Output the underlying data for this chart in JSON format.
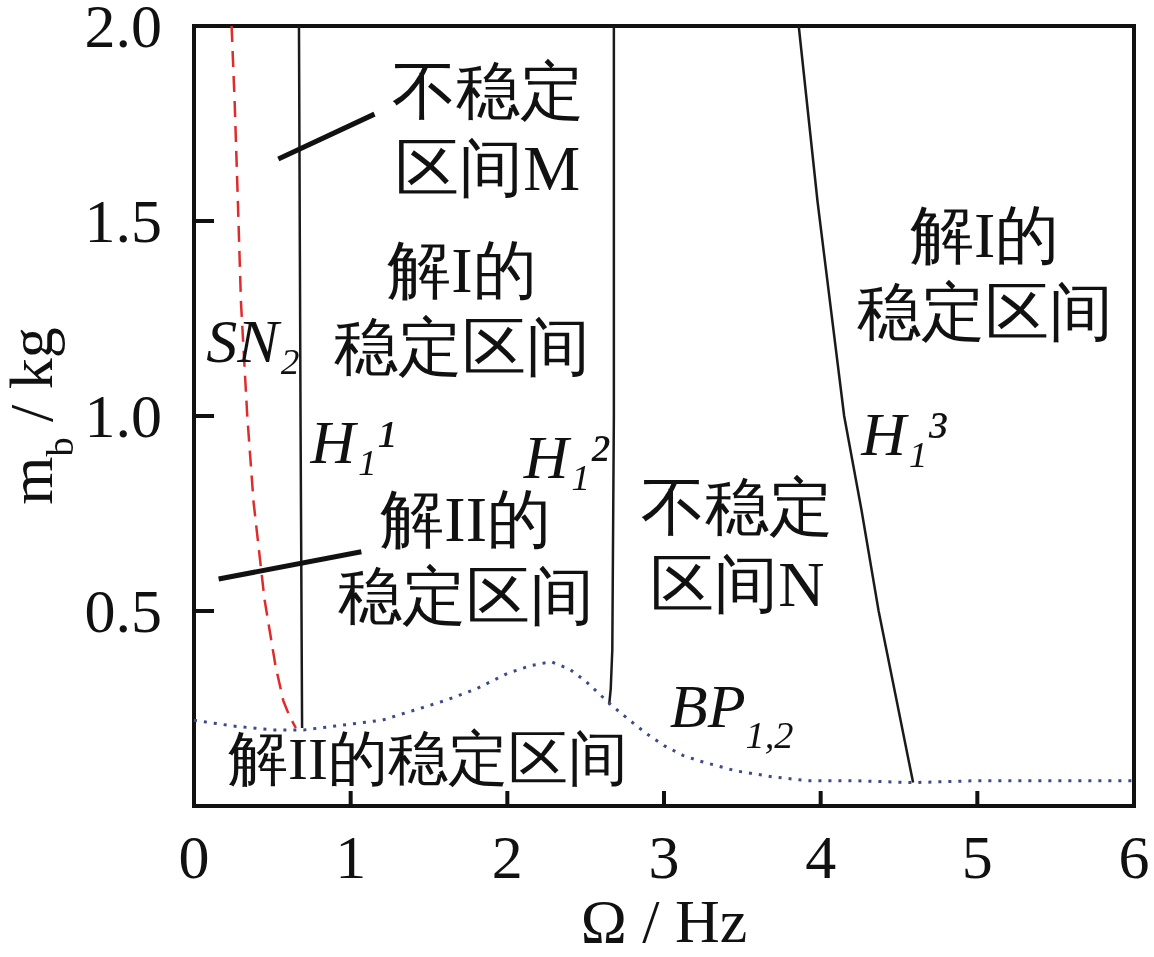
{
  "chart_data": {
    "type": "line",
    "xlabel": "Ω / Hz",
    "ylabel": "m$_{b}$ / kg",
    "xlim": [
      0,
      6
    ],
    "ylim": [
      0,
      2
    ],
    "xticks": [
      0,
      1,
      2,
      3,
      4,
      5,
      6
    ],
    "yticks": [
      0.5,
      {
        "value": 1,
        "label": "1.0"
      },
      1.5,
      {
        "value": 2,
        "label": "2.0"
      }
    ],
    "series": [
      {
        "name": "SN₂",
        "color": "#e02b2b",
        "line_style": "dashed",
        "x": [
          0.24,
          0.26,
          0.28,
          0.3,
          0.34,
          0.38,
          0.45,
          0.52,
          0.57,
          0.61,
          0.65
        ],
        "values": [
          2.0,
          1.8,
          1.55,
          1.29,
          1.0,
          0.78,
          0.53,
          0.36,
          0.27,
          0.23,
          0.2
        ]
      },
      {
        "name": "H₁¹",
        "color": "#1a1a1a",
        "line_style": "solid",
        "x": [
          0.67,
          0.68,
          0.69
        ],
        "values": [
          2.0,
          1.0,
          0.2
        ]
      },
      {
        "name": "H₁²",
        "color": "#1a1a1a",
        "line_style": "solid",
        "x": [
          2.68,
          2.68,
          2.67,
          2.66,
          2.65
        ],
        "values": [
          2.0,
          1.0,
          0.4,
          0.3,
          0.26
        ]
      },
      {
        "name": "H₁³",
        "color": "#1a1a1a",
        "line_style": "solid",
        "x": [
          3.86,
          3.98,
          4.15,
          4.26,
          4.37,
          4.48,
          4.59
        ],
        "values": [
          2.0,
          1.55,
          1.0,
          0.76,
          0.5,
          0.28,
          0.06
        ]
      },
      {
        "name": "BP$_{1,2}$",
        "color": "#3d4a8a",
        "line_style": "dotted",
        "x": [
          0,
          0.25,
          0.5,
          0.7,
          0.9,
          1.2,
          1.4,
          1.6,
          1.8,
          2.0,
          2.15,
          2.28,
          2.4,
          2.5,
          2.58,
          2.66,
          2.78,
          2.89,
          3.0,
          3.12,
          3.23,
          3.46,
          3.69,
          3.91,
          4.2,
          4.59,
          5.0,
          5.5,
          6.0
        ],
        "values": [
          0.22,
          0.205,
          0.195,
          0.195,
          0.205,
          0.22,
          0.245,
          0.27,
          0.3,
          0.34,
          0.36,
          0.37,
          0.35,
          0.32,
          0.29,
          0.26,
          0.22,
          0.185,
          0.155,
          0.13,
          0.115,
          0.09,
          0.075,
          0.065,
          0.065,
          0.06,
          0.065,
          0.065,
          0.065
        ]
      }
    ],
    "annotations": [
      "不稳定区间M",
      "解I的稳定区间",
      "解II的稳定区间",
      "不稳定区间N",
      "解I的稳定区间",
      "解II的稳定区间"
    ]
  }
}
